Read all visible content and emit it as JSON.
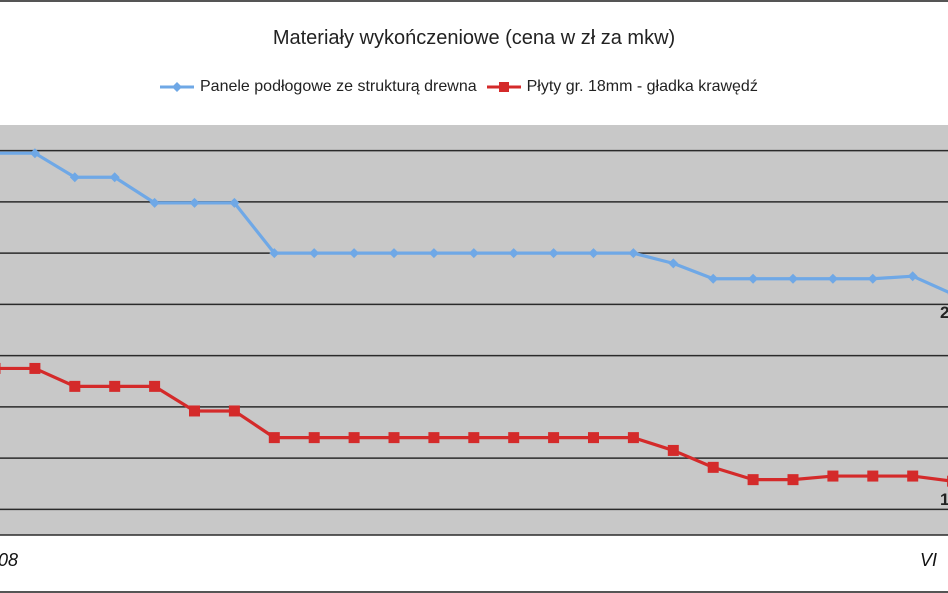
{
  "chart_data": {
    "type": "line",
    "title": "Materiały wykończeniowe (cena w zł za mkw)",
    "xlabel": "",
    "ylabel": "",
    "x_tick_labels": [
      "08",
      "VI"
    ],
    "end_labels": [
      "2",
      "1"
    ],
    "grid": true,
    "legend_position": "top",
    "plot_background": "#c8c8c8",
    "series": [
      {
        "name": "Panele podłogowe ze strukturą drewna",
        "color": "#6fa8e6",
        "marker": "diamond",
        "values": [
          3.95,
          3.95,
          3.48,
          3.48,
          2.98,
          2.98,
          2.98,
          2.0,
          2.0,
          2.0,
          2.0,
          2.0,
          2.0,
          2.0,
          2.0,
          2.0,
          2.0,
          1.8,
          1.5,
          1.5,
          1.5,
          1.5,
          1.5,
          1.55,
          1.2
        ]
      },
      {
        "name": "Płyty gr. 18mm - gładka krawędź",
        "color": "#d42a2a",
        "marker": "square",
        "values": [
          -0.25,
          -0.25,
          -0.6,
          -0.6,
          -0.6,
          -1.08,
          -1.08,
          -1.6,
          -1.6,
          -1.6,
          -1.6,
          -1.6,
          -1.6,
          -1.6,
          -1.6,
          -1.6,
          -1.6,
          -1.85,
          -2.18,
          -2.42,
          -2.42,
          -2.35,
          -2.35,
          -2.35,
          -2.45
        ]
      }
    ]
  }
}
